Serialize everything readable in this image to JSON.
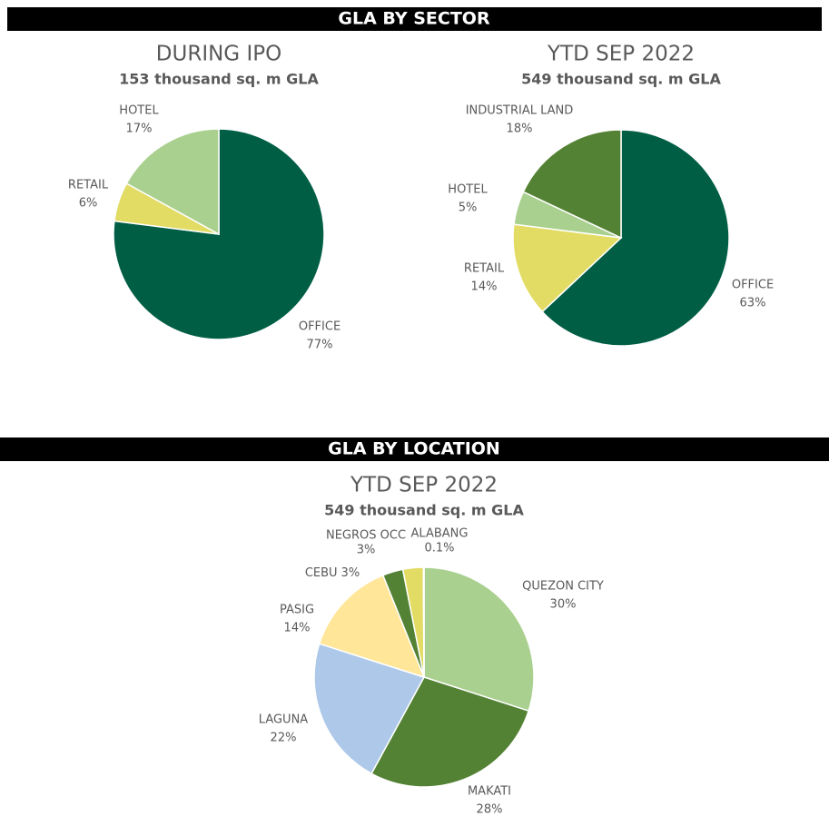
{
  "sections": [
    "GLA BY SECTOR",
    "GLA BY LOCATION"
  ],
  "chart_data": [
    {
      "type": "pie",
      "title": "DURING IPO",
      "subtitle": "153 thousand sq. m GLA",
      "categories": [
        "OFFICE",
        "RETAIL",
        "HOTEL"
      ],
      "values": [
        77,
        6,
        17
      ],
      "value_labels": [
        "77%",
        "6%",
        "17%"
      ],
      "colors": [
        "#005e45",
        "#e2dc64",
        "#a9d08e"
      ]
    },
    {
      "type": "pie",
      "title": "YTD SEP 2022",
      "subtitle": "549 thousand sq. m GLA",
      "categories": [
        "OFFICE",
        "RETAIL",
        "HOTEL",
        "INDUSTRIAL LAND"
      ],
      "values": [
        63,
        14,
        5,
        18
      ],
      "value_labels": [
        "63%",
        "14%",
        "5%",
        "18%"
      ],
      "colors": [
        "#005e45",
        "#e2dc64",
        "#a9d08e",
        "#548235"
      ]
    },
    {
      "type": "pie",
      "title": "YTD SEP 2022",
      "subtitle": "549 thousand sq. m GLA",
      "categories": [
        "QUEZON CITY",
        "MAKATI",
        "LAGUNA",
        "PASIG",
        "CEBU",
        "NEGROS OCC",
        "ALABANG"
      ],
      "values": [
        30,
        28,
        22,
        14,
        3,
        3,
        0.1
      ],
      "value_labels": [
        "30%",
        "28%",
        "22%",
        "14%",
        "3%",
        "3%",
        "0.1%"
      ],
      "colors": [
        "#a9d08e",
        "#548235",
        "#adc8e8",
        "#ffe699",
        "#548235",
        "#e2dc64",
        "#ffe699"
      ]
    }
  ]
}
